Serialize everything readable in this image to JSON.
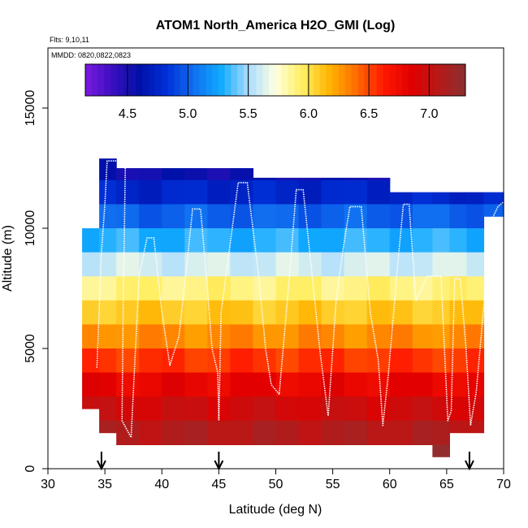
{
  "chart_data": {
    "type": "heatmap",
    "title": "ATOM1 North_America H2O_GMI (Log)",
    "annotations": [
      "Flts: 9,10,11",
      "MMDD: 0820,0822,0823"
    ],
    "xlabel": "Latitude (deg N)",
    "ylabel": "Altitude (m)",
    "xlim": [
      30,
      70
    ],
    "ylim": [
      0,
      17500
    ],
    "x_ticks": [
      30,
      35,
      40,
      45,
      50,
      55,
      60,
      65,
      70
    ],
    "y_ticks": [
      0,
      5000,
      10000,
      15000
    ],
    "colorbar": {
      "range": [
        4.15,
        7.3
      ],
      "ticks": [
        "4.5",
        "5.0",
        "5.5",
        "6.0",
        "6.5",
        "7.0"
      ],
      "tick_values": [
        4.5,
        5.0,
        5.5,
        6.0,
        6.5,
        7.0
      ],
      "colors": [
        "#7a1ae0",
        "#3a0fc0",
        "#0010a8",
        "#0030d8",
        "#1070f0",
        "#10aaff",
        "#a8dcff",
        "#ffffe0",
        "#ffee60",
        "#ffb400",
        "#ff6a00",
        "#ff1800",
        "#e00000",
        "#b81818",
        "#8a3030"
      ]
    },
    "grid": false,
    "series": [
      {
        "name": "H2O_GMI curtain",
        "columns": [
          {
            "lat": 34.0,
            "top": 10000,
            "bot": 2500
          },
          {
            "lat": 35.0,
            "top": 12900,
            "bot": 1500
          },
          {
            "lat": 37.0,
            "top": 12500,
            "bot": 1000
          },
          {
            "lat": 39.0,
            "top": 12500,
            "bot": 1000
          },
          {
            "lat": 41.0,
            "top": 12500,
            "bot": 1000
          },
          {
            "lat": 43.0,
            "top": 12500,
            "bot": 1000
          },
          {
            "lat": 45.0,
            "top": 12500,
            "bot": 1000
          },
          {
            "lat": 47.0,
            "top": 12500,
            "bot": 1000
          },
          {
            "lat": 49.0,
            "top": 12100,
            "bot": 1000
          },
          {
            "lat": 51.0,
            "top": 12100,
            "bot": 1000
          },
          {
            "lat": 53.0,
            "top": 12100,
            "bot": 1000
          },
          {
            "lat": 55.0,
            "top": 12100,
            "bot": 1000
          },
          {
            "lat": 57.0,
            "top": 12100,
            "bot": 1000
          },
          {
            "lat": 59.0,
            "top": 12100,
            "bot": 1000
          },
          {
            "lat": 61.0,
            "top": 11500,
            "bot": 1000
          },
          {
            "lat": 63.0,
            "top": 11500,
            "bot": 1000
          },
          {
            "lat": 64.5,
            "top": 11500,
            "bot": 500
          },
          {
            "lat": 66.0,
            "top": 11500,
            "bot": 1500
          },
          {
            "lat": 67.5,
            "top": 11500,
            "bot": 1500
          },
          {
            "lat": 69.0,
            "top": 11500,
            "bot": 10500
          }
        ],
        "altitude_levels": [
          {
            "alt": 12500,
            "value": 4.55
          },
          {
            "alt": 11500,
            "value": 4.75
          },
          {
            "alt": 10500,
            "value": 5.0
          },
          {
            "alt": 9500,
            "value": 5.3
          },
          {
            "alt": 8500,
            "value": 5.6
          },
          {
            "alt": 7500,
            "value": 5.9
          },
          {
            "alt": 6500,
            "value": 6.1
          },
          {
            "alt": 5500,
            "value": 6.3
          },
          {
            "alt": 4500,
            "value": 6.55
          },
          {
            "alt": 3500,
            "value": 6.8
          },
          {
            "alt": 2500,
            "value": 6.95
          },
          {
            "alt": 1500,
            "value": 7.1
          },
          {
            "alt": 500,
            "value": 7.2
          }
        ]
      },
      {
        "name": "Flight track",
        "points": [
          [
            34.3,
            4200
          ],
          [
            34.7,
            9000
          ],
          [
            35.0,
            11000
          ],
          [
            35.2,
            12800
          ],
          [
            36.0,
            12800
          ],
          [
            36.8,
            12800
          ],
          [
            36.6,
            6500
          ],
          [
            36.5,
            2000
          ],
          [
            37.3,
            1300
          ],
          [
            38.0,
            8000
          ],
          [
            38.7,
            9600
          ],
          [
            39.3,
            9600
          ],
          [
            40.0,
            6500
          ],
          [
            40.7,
            4300
          ],
          [
            41.5,
            5500
          ],
          [
            42.2,
            8500
          ],
          [
            42.7,
            10800
          ],
          [
            43.4,
            10800
          ],
          [
            44.0,
            7500
          ],
          [
            44.4,
            5000
          ],
          [
            44.9,
            4000
          ],
          [
            45.0,
            2000
          ],
          [
            45.2,
            6500
          ],
          [
            45.9,
            9000
          ],
          [
            46.7,
            11900
          ],
          [
            47.5,
            11900
          ],
          [
            48.5,
            8000
          ],
          [
            49.1,
            5000
          ],
          [
            49.6,
            3500
          ],
          [
            50.3,
            3100
          ],
          [
            51.2,
            8000
          ],
          [
            51.8,
            11600
          ],
          [
            52.4,
            11600
          ],
          [
            53.2,
            8000
          ],
          [
            53.9,
            4800
          ],
          [
            54.6,
            2200
          ],
          [
            55.3,
            7000
          ],
          [
            55.9,
            9100
          ],
          [
            56.5,
            10900
          ],
          [
            57.5,
            10900
          ],
          [
            58.3,
            6500
          ],
          [
            59.0,
            4500
          ],
          [
            59.4,
            1800
          ],
          [
            59.9,
            4000
          ],
          [
            60.7,
            8500
          ],
          [
            61.2,
            11000
          ],
          [
            61.7,
            11000
          ],
          [
            62.3,
            7000
          ],
          [
            63.3,
            8000
          ],
          [
            64.5,
            8000
          ],
          [
            64.8,
            5000
          ],
          [
            65.1,
            2000
          ],
          [
            65.4,
            2400
          ],
          [
            65.7,
            7900
          ],
          [
            66.2,
            7900
          ],
          [
            66.7,
            5000
          ],
          [
            67.1,
            1800
          ],
          [
            67.6,
            3200
          ],
          [
            68.3,
            7000
          ],
          [
            68.6,
            10200
          ],
          [
            69.0,
            10400
          ],
          [
            69.5,
            10900
          ],
          [
            70.0,
            11100
          ]
        ]
      }
    ],
    "markers": [
      {
        "lat": 34.7,
        "symbol": "down-arrow"
      },
      {
        "lat": 45.0,
        "symbol": "down-arrow"
      },
      {
        "lat": 67.0,
        "symbol": "down-arrow"
      }
    ]
  }
}
